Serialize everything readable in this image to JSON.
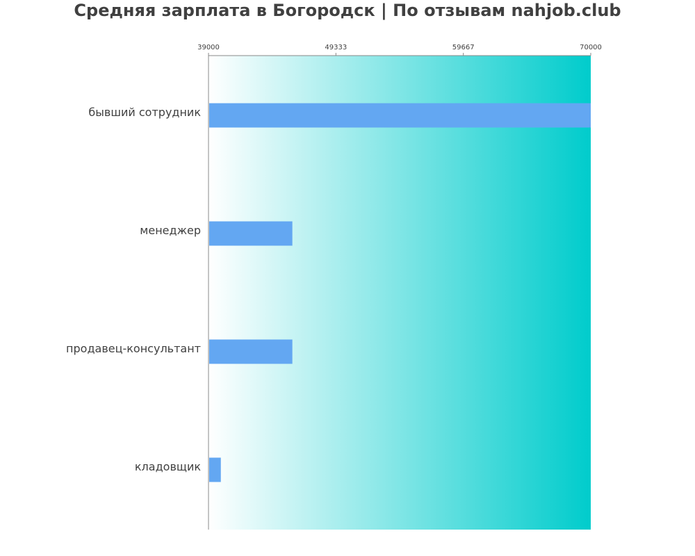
{
  "chart_data": {
    "type": "bar",
    "orientation": "horizontal",
    "title": "Средняя зарплата в Богородск | По отзывам nahjob.club",
    "categories": [
      "бывший сотрудник",
      "менеджер",
      "продавец-консультант",
      "кладовщик"
    ],
    "values": [
      70000,
      45800,
      45800,
      40000
    ],
    "xlim": [
      39000,
      70000
    ],
    "xticks": [
      "39000",
      "49333",
      "59667",
      "70000"
    ],
    "xaxis_position": "top",
    "xlabel": "",
    "ylabel": "",
    "grid": false,
    "legend": "none",
    "colors": {
      "bar": "#63a7f2",
      "background_start": "#ffffff",
      "background_end": "#00cccc",
      "title": "#404040",
      "label": "#404040",
      "axis": "#888888"
    }
  }
}
